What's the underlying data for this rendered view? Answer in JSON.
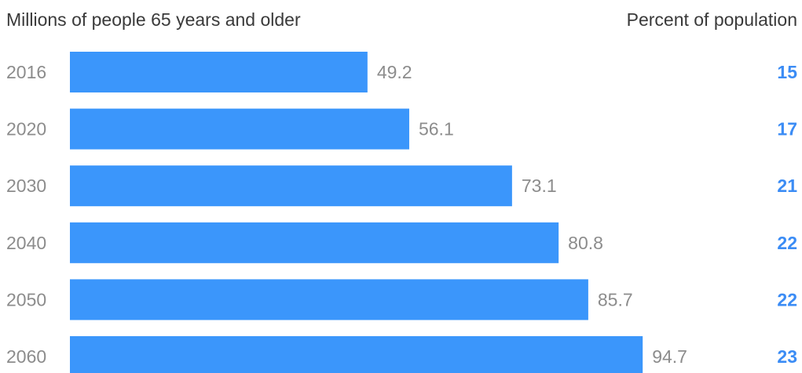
{
  "chart_data": {
    "type": "bar",
    "orientation": "horizontal",
    "title": "",
    "left_header": "Millions of people 65 years and older",
    "right_header": "Percent of population",
    "categories": [
      "2016",
      "2020",
      "2030",
      "2040",
      "2050",
      "2060"
    ],
    "values": [
      49.2,
      56.1,
      73.1,
      80.8,
      85.7,
      94.7
    ],
    "value_labels": [
      "49.2",
      "56.1",
      "73.1",
      "80.8",
      "85.7",
      "94.7"
    ],
    "percent_labels": [
      "15",
      "17",
      "21",
      "22",
      "22",
      "23"
    ],
    "percent_values": [
      15,
      17,
      21,
      22,
      22,
      23
    ],
    "xlim": [
      0,
      100
    ],
    "grid": false,
    "legend": "none",
    "colors": {
      "bar": "#3b96fb",
      "value_text": "#8c8c8c",
      "year_text": "#8c8c8c",
      "percent_text": "#3b8cf5",
      "header_text": "#3a3a3a"
    }
  }
}
